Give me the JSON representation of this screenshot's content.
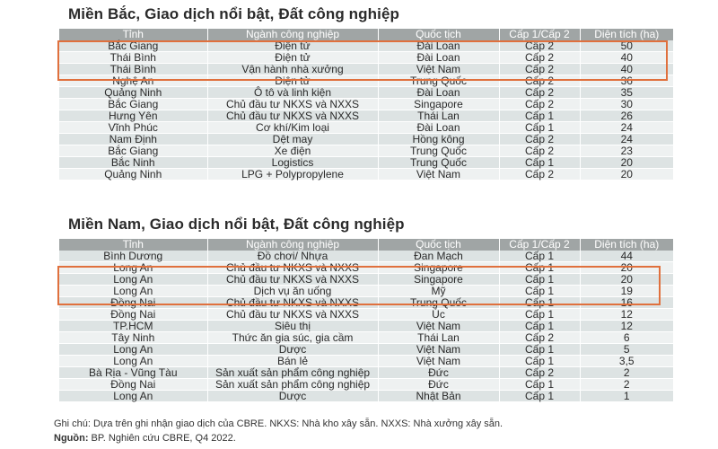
{
  "colors": {
    "header_bg": "#a0a5a5",
    "row_dark": "#dde3e3",
    "row_light": "#eef1f1",
    "highlight": "#e0703d"
  },
  "table1": {
    "title": "Miền Bắc, Giao dịch nổi bật, Đất công nghiệp",
    "headers": [
      "Tỉnh",
      "Ngành công nghiệp",
      "Quốc tịch",
      "Cấp 1/Cấp 2",
      "Diện tích (ha)"
    ],
    "rows": [
      [
        "Bắc Giang",
        "Điện tử",
        "Đài Loan",
        "Cấp 2",
        "50"
      ],
      [
        "Thái Bình",
        "Điện tử",
        "Đài Loan",
        "Cấp 2",
        "40"
      ],
      [
        "Thái Bình",
        "Vận hành nhà xưởng",
        "Việt Nam",
        "Cấp 2",
        "40"
      ],
      [
        "Nghệ An",
        "Điện tử",
        "Trung Quốc",
        "Cấp 2",
        "36"
      ],
      [
        "Quảng Ninh",
        "Ô tô và linh kiện",
        "Đài Loan",
        "Cấp 2",
        "35"
      ],
      [
        "Bắc Giang",
        "Chủ đầu tư NKXS và NXXS",
        "Singapore",
        "Cấp 2",
        "30"
      ],
      [
        "Hưng Yên",
        "Chủ đầu tư NKXS và NXXS",
        "Thái Lan",
        "Cấp 1",
        "26"
      ],
      [
        "Vĩnh Phúc",
        "Cơ khí/Kim loại",
        "Đài Loan",
        "Cấp 1",
        "24"
      ],
      [
        "Nam Định",
        "Dệt may",
        "Hồng kông",
        "Cấp 2",
        "24"
      ],
      [
        "Bắc Giang",
        "Xe điện",
        "Trung Quốc",
        "Cấp 2",
        "23"
      ],
      [
        "Bắc Ninh",
        "Logistics",
        "Trung Quốc",
        "Cấp 1",
        "20"
      ],
      [
        "Quảng Ninh",
        "LPG + Polypropylene",
        "Việt Nam",
        "Cấp 2",
        "20"
      ]
    ]
  },
  "table2": {
    "title": "Miền Nam, Giao dịch nổi bật, Đất công nghiệp",
    "headers": [
      "Tỉnh",
      "Ngành công nghiệp",
      "Quốc tịch",
      "Cấp 1/Cấp 2",
      "Diện tích (ha)"
    ],
    "rows": [
      [
        "Bình Dương",
        "Đồ chơi/ Nhựa",
        "Đan Mạch",
        "Cấp 1",
        "44"
      ],
      [
        "Long An",
        "Chủ đầu tư NKXS và NXXS",
        "Singapore",
        "Cấp 1",
        "20"
      ],
      [
        "Long An",
        "Chủ đầu tư NKXS và NXXS",
        "Singapore",
        "Cấp 1",
        "20"
      ],
      [
        "Long An",
        "Dịch vụ ăn uống",
        "Mỹ",
        "Cấp 1",
        "19"
      ],
      [
        "Đồng Nai",
        "Chủ đầu tư NKXS và NXXS",
        "Trung Quốc",
        "Cấp 1",
        "16"
      ],
      [
        "Đồng Nai",
        "Chủ đầu tư NKXS và NXXS",
        "Úc",
        "Cấp 1",
        "12"
      ],
      [
        "TP.HCM",
        "Siêu thị",
        "Việt Nam",
        "Cấp 1",
        "12"
      ],
      [
        "Tây Ninh",
        "Thức ăn gia súc, gia cầm",
        "Thái Lan",
        "Cấp 2",
        "6"
      ],
      [
        "Long An",
        "Dược",
        "Việt Nam",
        "Cấp 1",
        "5"
      ],
      [
        "Long An",
        "Bán lẻ",
        "Việt Nam",
        "Cấp 1",
        "3,5"
      ],
      [
        "Bà Rịa - Vũng Tàu",
        "Sản xuất sản phẩm công nghiệp",
        "Đức",
        "Cấp 2",
        "2"
      ],
      [
        "Đồng Nai",
        "Sản xuất sản phẩm công nghiệp",
        "Đức",
        "Cấp 1",
        "2"
      ],
      [
        "Long An",
        "Dược",
        "Nhật Bản",
        "Cấp 1",
        "1"
      ]
    ]
  },
  "notes": {
    "line1": "Ghi chú: Dựa trên ghi nhận giao dịch của CBRE. NKXS: Nhà kho xây sẵn. NXXS: Nhà xưởng xây sẵn.",
    "source_label": "Nguồn:",
    "source_text": " BP. Nghiên cứu CBRE, Q4 2022."
  }
}
